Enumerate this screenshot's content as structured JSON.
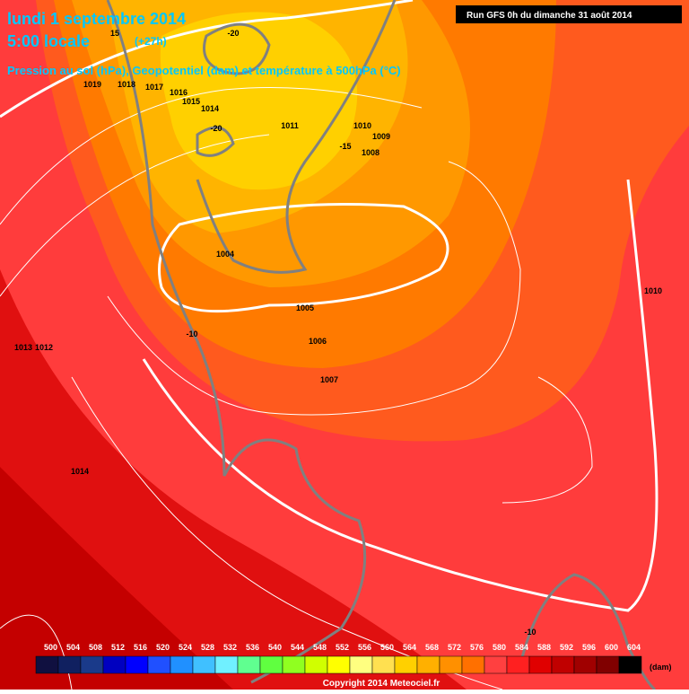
{
  "header": {
    "title": "lundi 1 septembre 2014",
    "subtitle": "5:00 locale",
    "lead": "(+27h)",
    "description": "Pression au sol (hPa), Geopotentiel (dam) et température à 500hPa (°C)",
    "run": "Run GFS 0h du dimanche 31 août 2014"
  },
  "pressure_labels": [
    "1019",
    "1018",
    "1017",
    "1016",
    "1015",
    "1014",
    "1011",
    "1010",
    "1009",
    "1008",
    "1004",
    "1005",
    "1006",
    "1007",
    "1010",
    "1013",
    "1012",
    "1014"
  ],
  "temperature_labels": [
    "-20",
    "-20",
    "-15",
    "15",
    "-10",
    "-10"
  ],
  "legend": {
    "unit": "(dam)",
    "ticks": [
      500,
      504,
      508,
      512,
      516,
      520,
      524,
      528,
      532,
      536,
      540,
      544,
      548,
      552,
      556,
      560,
      564,
      568,
      572,
      576,
      580,
      584,
      588,
      592,
      596,
      600,
      604
    ],
    "colors": [
      "#101040",
      "#102060",
      "#1a3a8a",
      "#0000c0",
      "#0000ff",
      "#2050ff",
      "#2090ff",
      "#40c0ff",
      "#70f0ff",
      "#60ff90",
      "#60ff40",
      "#90ff20",
      "#d0ff00",
      "#ffff00",
      "#ffff80",
      "#ffe050",
      "#ffd000",
      "#ffb000",
      "#ff9000",
      "#ff7000",
      "#ff4040",
      "#ff2020",
      "#e00000",
      "#c00000",
      "#a00000",
      "#800000",
      "#000000"
    ]
  },
  "copyright": "Copyright 2014 Meteociel.fr"
}
